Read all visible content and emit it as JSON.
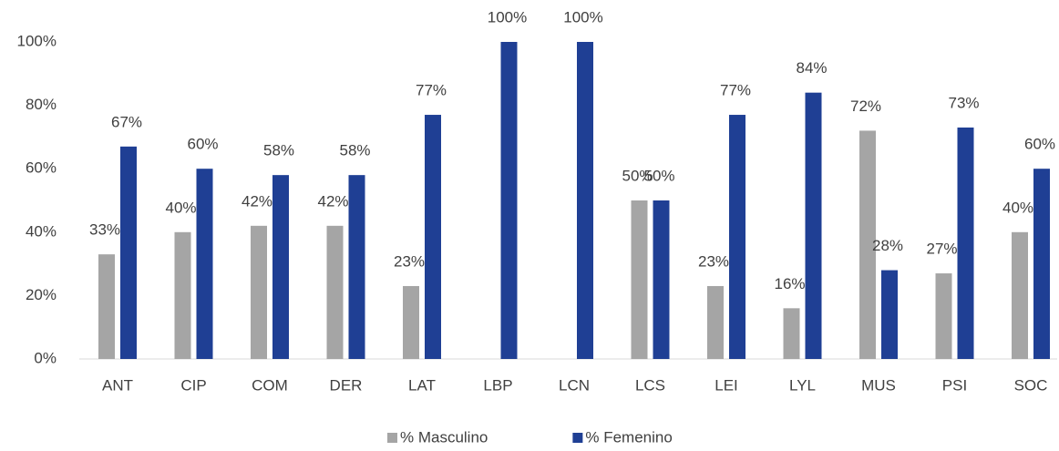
{
  "chart_data": {
    "type": "bar",
    "categories": [
      "ANT",
      "CIP",
      "COM",
      "DER",
      "LAT",
      "LBP",
      "LCN",
      "LCS",
      "LEI",
      "LYL",
      "MUS",
      "PSI",
      "SOC"
    ],
    "series": [
      {
        "name": "% Masculino",
        "color": "#a5a5a5",
        "values": [
          33,
          40,
          42,
          42,
          23,
          null,
          null,
          50,
          23,
          16,
          72,
          27,
          40
        ],
        "value_labels": [
          "33%",
          "40%",
          "42%",
          "42%",
          "23%",
          null,
          null,
          "50%",
          "23%",
          "16%",
          "72%",
          "27%",
          "40%"
        ]
      },
      {
        "name": "% Femenino",
        "color": "#1f3f94",
        "values": [
          67,
          60,
          58,
          58,
          77,
          100,
          100,
          50,
          77,
          84,
          28,
          73,
          60
        ],
        "value_labels": [
          "67%",
          "60%",
          "58%",
          "58%",
          "77%",
          "100%",
          "100%",
          "50%",
          "77%",
          "84%",
          "28%",
          "73%",
          "60%"
        ]
      }
    ],
    "ylim": [
      0,
      100
    ],
    "yticks": [
      {
        "value": 0,
        "label": "0%"
      },
      {
        "value": 20,
        "label": "20%"
      },
      {
        "value": 40,
        "label": "40%"
      },
      {
        "value": 60,
        "label": "60%"
      },
      {
        "value": 80,
        "label": "80%"
      },
      {
        "value": 100,
        "label": "100%"
      }
    ],
    "grid": false,
    "legend": "bottom"
  }
}
